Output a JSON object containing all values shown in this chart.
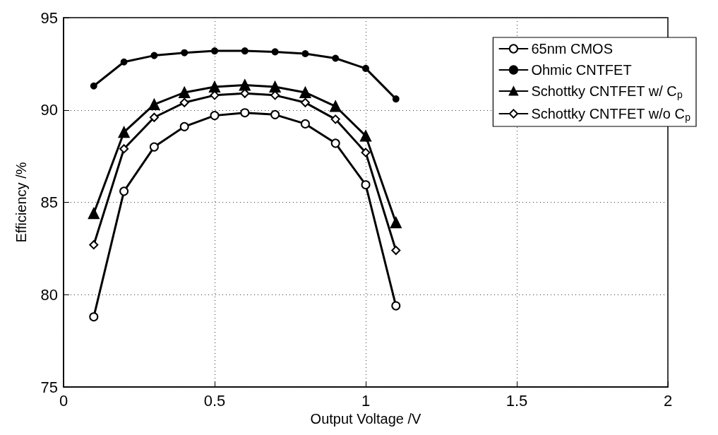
{
  "chart_data": {
    "type": "line",
    "xlabel": "Output Voltage /V",
    "ylabel": "Efficiency /%",
    "x": [
      0.1,
      0.2,
      0.3,
      0.4,
      0.5,
      0.6,
      0.7,
      0.8,
      0.9,
      1.0,
      1.1
    ],
    "series": [
      {
        "name": "65nm CMOS",
        "color": "#000000",
        "marker": "circle",
        "values": [
          78.8,
          85.6,
          88.0,
          89.1,
          89.7,
          89.85,
          89.75,
          89.25,
          88.2,
          85.95,
          79.4
        ]
      },
      {
        "name": "Ohmic CNTFET",
        "color": "#000000",
        "marker": "circle",
        "values": [
          91.3,
          92.6,
          92.95,
          93.1,
          93.2,
          93.2,
          93.15,
          93.05,
          92.8,
          92.25,
          90.6
        ]
      },
      {
        "name": "Schottky CNTFET w/ C$_{p}$",
        "color": "#000000",
        "marker": "triangle",
        "values": [
          84.4,
          88.8,
          90.3,
          90.95,
          91.25,
          91.35,
          91.25,
          90.95,
          90.2,
          88.6,
          83.9
        ]
      },
      {
        "name": "Schottky CNTFET w/o C$_{p}$",
        "color": "#000000",
        "marker": "diamond",
        "values": [
          82.7,
          87.9,
          89.6,
          90.4,
          90.8,
          90.9,
          90.8,
          90.4,
          89.5,
          87.7,
          82.4
        ]
      }
    ],
    "xlim": [
      0,
      2
    ],
    "xticks": [
      0,
      0.5,
      1,
      1.5,
      2
    ],
    "ylim": [
      75,
      95
    ],
    "yticks": [
      75,
      80,
      85,
      90,
      95
    ],
    "grid": true,
    "legend": "top right",
    "line_style": "solid"
  }
}
